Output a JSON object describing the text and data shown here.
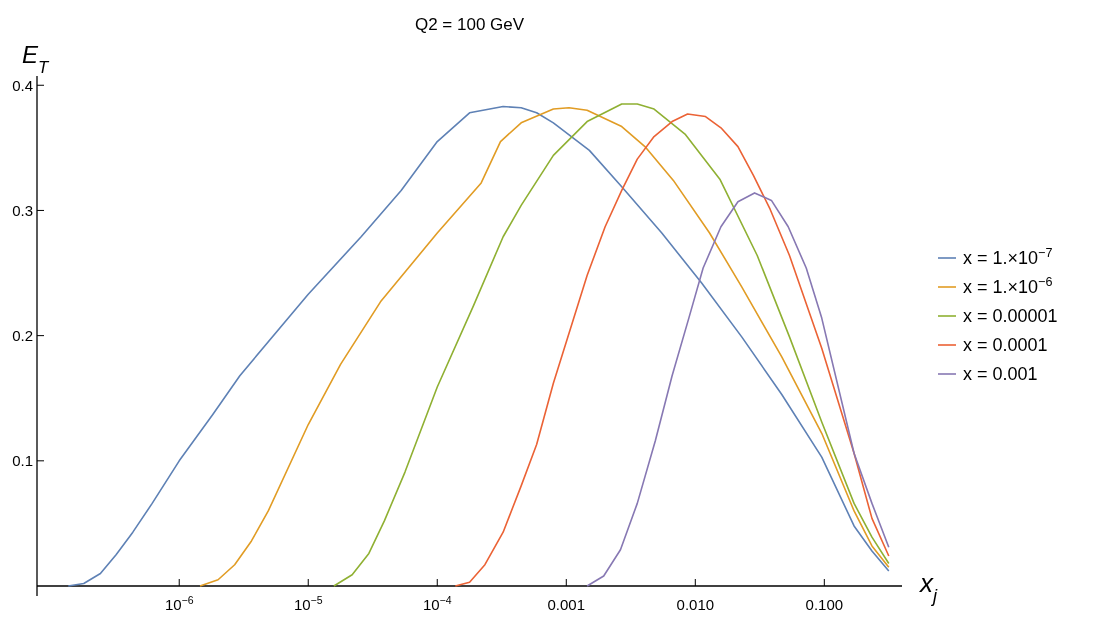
{
  "chart_data": {
    "type": "line",
    "title": "Q2 = 100 GeV",
    "xlabel": "x$_{j}$",
    "ylabel": "E$_{T}$",
    "log": "x",
    "xlim": [
      7.9e-08,
      0.4
    ],
    "ylim": [
      0,
      0.405
    ],
    "xticks": [
      {
        "value": 1e-06,
        "label": "10$^{−6}$"
      },
      {
        "value": 1e-05,
        "label": "10$^{−5}$"
      },
      {
        "value": 0.0001,
        "label": "10$^{−4}$"
      },
      {
        "value": 0.001,
        "label": "0.001"
      },
      {
        "value": 0.01,
        "label": "0.010"
      },
      {
        "value": 0.1,
        "label": "0.100"
      }
    ],
    "yticks": [
      0.1,
      0.2,
      0.3,
      0.4
    ],
    "grid": false,
    "legend": "right",
    "marker": "none",
    "line_style": "solid",
    "series": [
      {
        "name": "x = 1.×10$^{−7}$",
        "color": "#5e81b5",
        "x": [
          1.38e-07,
          1.82e-07,
          2.45e-07,
          3.24e-07,
          4.37e-07,
          6.17e-07,
          1e-06,
          1.82e-06,
          2.95e-06,
          1e-05,
          2.57e-05,
          5.25e-05,
          0.0001,
          0.000178,
          0.000324,
          0.000447,
          0.000589,
          0.000794,
          0.00151,
          0.00269,
          0.0055,
          0.0112,
          0.0229,
          0.0468,
          0.0955,
          0.17,
          0.234,
          0.316
        ],
        "values": [
          0,
          0.002,
          0.01,
          0.025,
          0.043,
          0.066,
          0.1,
          0.137,
          0.168,
          0.233,
          0.279,
          0.316,
          0.355,
          0.378,
          0.383,
          0.382,
          0.378,
          0.37,
          0.348,
          0.319,
          0.282,
          0.242,
          0.199,
          0.153,
          0.103,
          0.048,
          0.028,
          0.012
        ]
      },
      {
        "name": "x = 1.×10$^{−6}$",
        "color": "#e19c24",
        "x": [
          1.45e-06,
          2e-06,
          2.69e-06,
          3.63e-06,
          4.9e-06,
          1e-05,
          1.78e-05,
          3.63e-05,
          0.0001,
          0.000219,
          0.000309,
          0.000447,
          0.000794,
          0.00105,
          0.00145,
          0.00269,
          0.00407,
          0.00676,
          0.0129,
          0.0229,
          0.0468,
          0.0955,
          0.17,
          0.234,
          0.316
        ],
        "values": [
          0,
          0.005,
          0.017,
          0.036,
          0.06,
          0.129,
          0.177,
          0.227,
          0.282,
          0.322,
          0.355,
          0.37,
          0.381,
          0.382,
          0.38,
          0.367,
          0.351,
          0.324,
          0.282,
          0.239,
          0.183,
          0.122,
          0.06,
          0.032,
          0.015
        ]
      },
      {
        "name": "x = 0.00001",
        "color": "#8fb032",
        "x": [
          1.58e-05,
          2.19e-05,
          2.95e-05,
          3.89e-05,
          5.62e-05,
          0.0001,
          0.000191,
          0.000324,
          0.000447,
          0.000794,
          0.00145,
          0.00269,
          0.00355,
          0.00479,
          0.00832,
          0.0155,
          0.0302,
          0.0537,
          0.0955,
          0.17,
          0.234,
          0.316
        ],
        "values": [
          0,
          0.009,
          0.026,
          0.052,
          0.091,
          0.159,
          0.224,
          0.279,
          0.304,
          0.344,
          0.371,
          0.385,
          0.385,
          0.381,
          0.361,
          0.325,
          0.264,
          0.199,
          0.131,
          0.066,
          0.039,
          0.018
        ]
      },
      {
        "name": "x = 0.0001",
        "color": "#eb6235",
        "x": [
          0.000138,
          0.000178,
          0.000234,
          0.000324,
          0.000447,
          0.000589,
          0.000794,
          0.00145,
          0.002,
          0.00269,
          0.00355,
          0.00479,
          0.00661,
          0.00871,
          0.012,
          0.0158,
          0.0214,
          0.0282,
          0.038,
          0.0537,
          0.0955,
          0.17,
          0.234,
          0.316
        ],
        "values": [
          0,
          0.003,
          0.017,
          0.043,
          0.08,
          0.113,
          0.162,
          0.248,
          0.287,
          0.316,
          0.341,
          0.359,
          0.371,
          0.377,
          0.375,
          0.366,
          0.351,
          0.328,
          0.301,
          0.264,
          0.19,
          0.106,
          0.054,
          0.024
        ]
      },
      {
        "name": "x = 0.001",
        "color": "#8778b3",
        "x": [
          0.00145,
          0.00195,
          0.00263,
          0.00355,
          0.0049,
          0.00661,
          0.00891,
          0.0115,
          0.0158,
          0.0214,
          0.0288,
          0.0389,
          0.0525,
          0.0724,
          0.0955,
          0.17,
          0.234,
          0.316
        ],
        "values": [
          0,
          0.008,
          0.029,
          0.066,
          0.116,
          0.168,
          0.214,
          0.254,
          0.287,
          0.307,
          0.314,
          0.308,
          0.287,
          0.254,
          0.214,
          0.106,
          0.066,
          0.031
        ]
      }
    ]
  }
}
